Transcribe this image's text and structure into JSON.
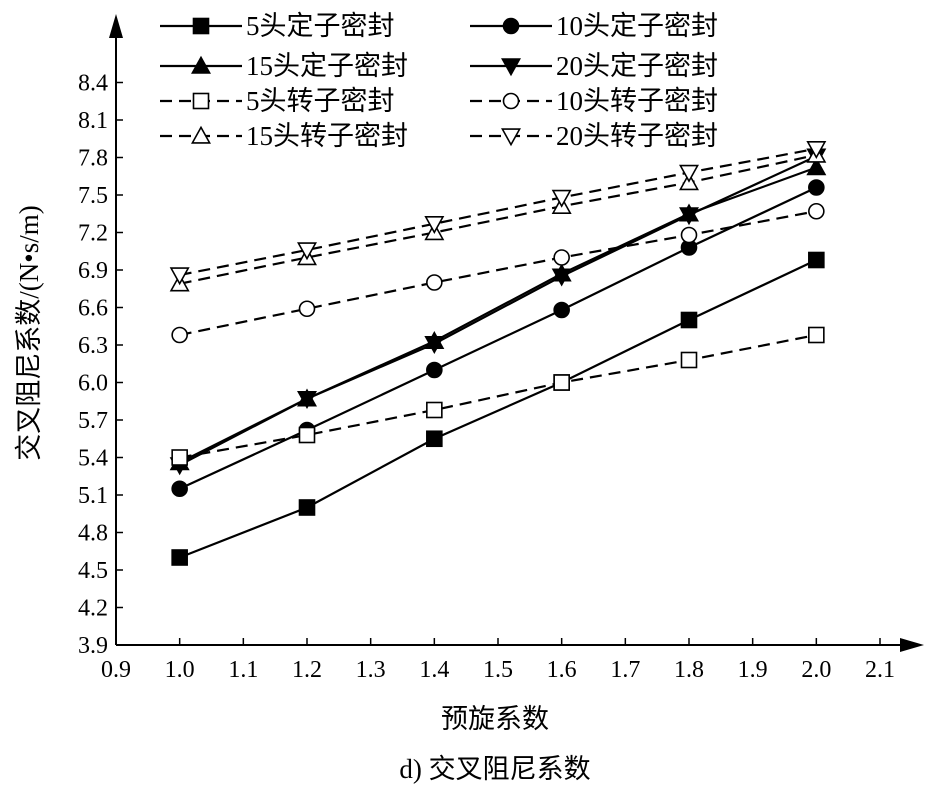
{
  "chart_data": {
    "type": "line",
    "title": "",
    "caption": "d) 交叉阻尼系数",
    "xlabel": "预旋系数",
    "ylabel": "交叉阻尼系数/(N•s/m)",
    "xlim": [
      0.9,
      2.1
    ],
    "ylim": [
      3.9,
      8.7
    ],
    "xticks": [
      "0.9",
      "1.0",
      "1.1",
      "1.2",
      "1.3",
      "1.4",
      "1.5",
      "1.6",
      "1.7",
      "1.8",
      "1.9",
      "2.0",
      "2.1"
    ],
    "yticks": [
      "3.9",
      "4.2",
      "4.5",
      "4.8",
      "5.1",
      "5.4",
      "5.7",
      "6.0",
      "6.3",
      "6.6",
      "6.9",
      "7.2",
      "7.5",
      "7.8",
      "8.1",
      "8.4"
    ],
    "x": [
      1.0,
      1.2,
      1.4,
      1.6,
      1.8,
      2.0
    ],
    "legend_position": "top",
    "series": [
      {
        "name": "5头定子密封",
        "marker": "square",
        "filled": true,
        "dashed": false,
        "values": [
          4.6,
          5.0,
          5.55,
          6.0,
          6.5,
          6.98
        ]
      },
      {
        "name": "10头定子密封",
        "marker": "circle",
        "filled": true,
        "dashed": false,
        "values": [
          5.15,
          5.62,
          6.1,
          6.58,
          7.08,
          7.56
        ]
      },
      {
        "name": "15头定子密封",
        "marker": "triangle-up",
        "filled": true,
        "dashed": false,
        "values": [
          5.36,
          5.87,
          6.33,
          6.87,
          7.35,
          7.72
        ]
      },
      {
        "name": "20头定子密封",
        "marker": "triangle-down",
        "filled": true,
        "dashed": false,
        "values": [
          5.34,
          5.87,
          6.31,
          6.85,
          7.34,
          7.81
        ]
      },
      {
        "name": "5头转子密封",
        "marker": "square",
        "filled": false,
        "dashed": true,
        "values": [
          5.4,
          5.58,
          5.78,
          6.0,
          6.18,
          6.38
        ]
      },
      {
        "name": "10头转子密封",
        "marker": "circle",
        "filled": false,
        "dashed": true,
        "values": [
          6.38,
          6.59,
          6.8,
          7.0,
          7.18,
          7.37
        ]
      },
      {
        "name": "15头转子密封",
        "marker": "triangle-up",
        "filled": false,
        "dashed": true,
        "values": [
          6.79,
          7.0,
          7.2,
          7.41,
          7.6,
          7.82
        ]
      },
      {
        "name": "20头转子密封",
        "marker": "triangle-down",
        "filled": false,
        "dashed": true,
        "values": [
          6.86,
          7.06,
          7.27,
          7.48,
          7.68,
          7.87
        ]
      }
    ]
  }
}
